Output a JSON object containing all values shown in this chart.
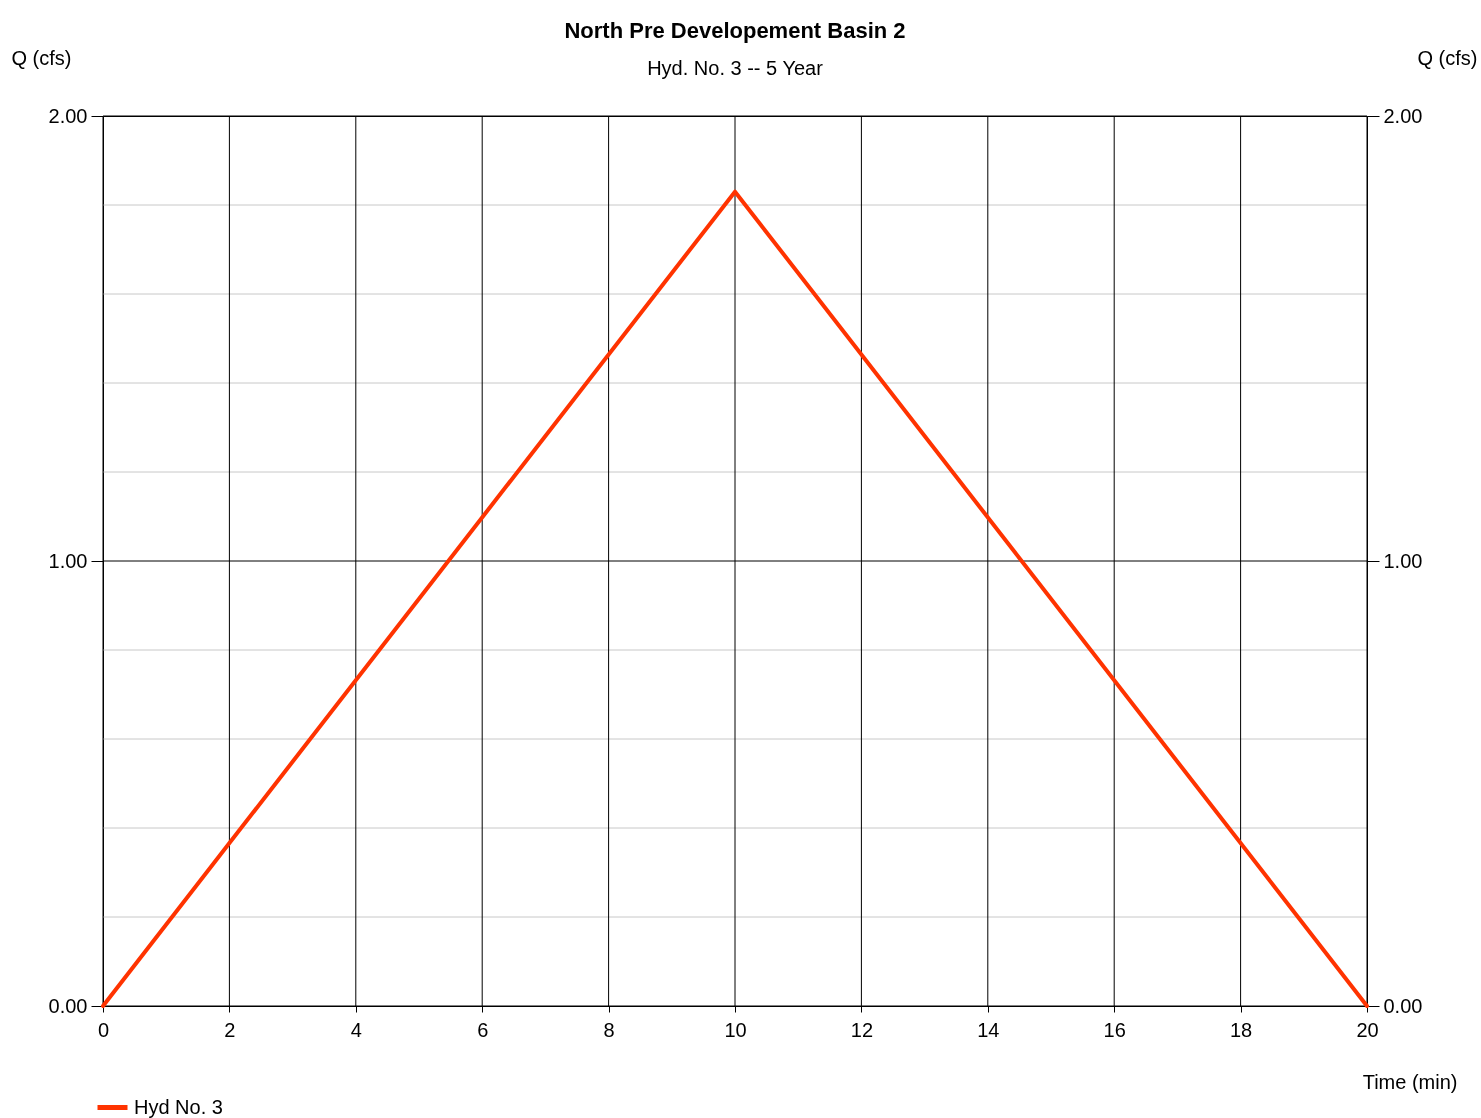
{
  "chart_data": {
    "type": "line",
    "title": "North Pre Developement Basin 2",
    "subtitle": "Hyd. No. 3 -- 5 Year",
    "xlabel": "Time (min)",
    "ylabel": "Q (cfs)",
    "y2label": "Q (cfs)",
    "x": [
      0,
      10,
      20
    ],
    "series": [
      {
        "name": "Hyd No. 3",
        "color": "#ff3300",
        "values": [
          0,
          1.83,
          0
        ]
      }
    ],
    "xlim": [
      0,
      20
    ],
    "xticks": [
      0,
      2,
      4,
      6,
      8,
      10,
      12,
      14,
      16,
      18,
      20
    ],
    "ylim": [
      0,
      2
    ],
    "yticks": [
      {
        "value": 0,
        "label": "0.00"
      },
      {
        "value": 0.2,
        "label": null
      },
      {
        "value": 0.4,
        "label": null
      },
      {
        "value": 0.6,
        "label": null
      },
      {
        "value": 0.8,
        "label": null
      },
      {
        "value": 1,
        "label": "1.00"
      },
      {
        "value": 1.2,
        "label": null
      },
      {
        "value": 1.4,
        "label": null
      },
      {
        "value": 1.6,
        "label": null
      },
      {
        "value": 1.8,
        "label": null
      },
      {
        "value": 2,
        "label": "2.00"
      }
    ],
    "y2lim": [
      0,
      2
    ],
    "y2ticks": [
      {
        "value": 0,
        "label": "0.00"
      },
      {
        "value": 1,
        "label": "1.00"
      },
      {
        "value": 2,
        "label": "2.00"
      }
    ],
    "grid": true,
    "legend": "bottom left",
    "marker": "none",
    "line_style": "solid"
  }
}
